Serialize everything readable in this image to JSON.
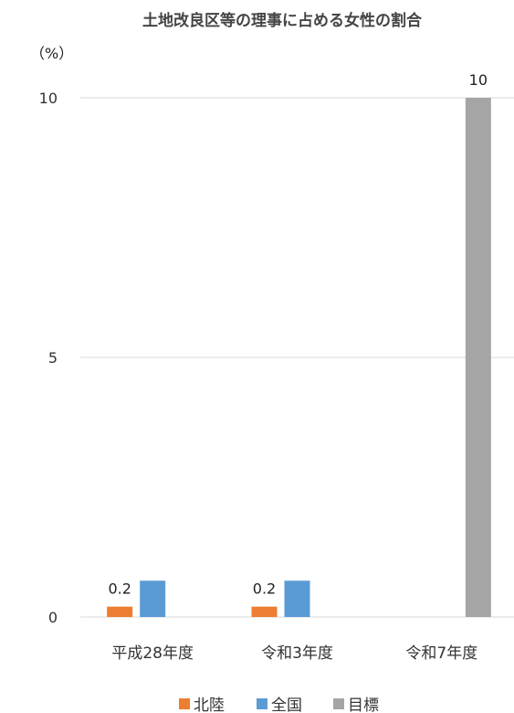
{
  "chart_data": {
    "type": "bar",
    "title": "土地改良区等の理事に占める女性の割合",
    "unit_label": "（%）",
    "categories": [
      "平成28年度",
      "令和3年度",
      "令和7年度"
    ],
    "series": [
      {
        "name": "北陸",
        "color": "#ED7D31",
        "values": [
          0.2,
          0.2,
          null
        ],
        "labels": [
          "0.2",
          "0.2",
          ""
        ]
      },
      {
        "name": "全国",
        "color": "#5B9BD5",
        "values": [
          0.7,
          0.7,
          null
        ],
        "labels": [
          "",
          "",
          ""
        ]
      },
      {
        "name": "目標",
        "color": "#A5A5A5",
        "values": [
          null,
          null,
          10
        ],
        "labels": [
          "",
          "",
          "10"
        ]
      }
    ],
    "ylim": [
      0,
      10
    ],
    "yticks": [
      0,
      5,
      10
    ],
    "grid": true,
    "legend_position": "bottom"
  }
}
